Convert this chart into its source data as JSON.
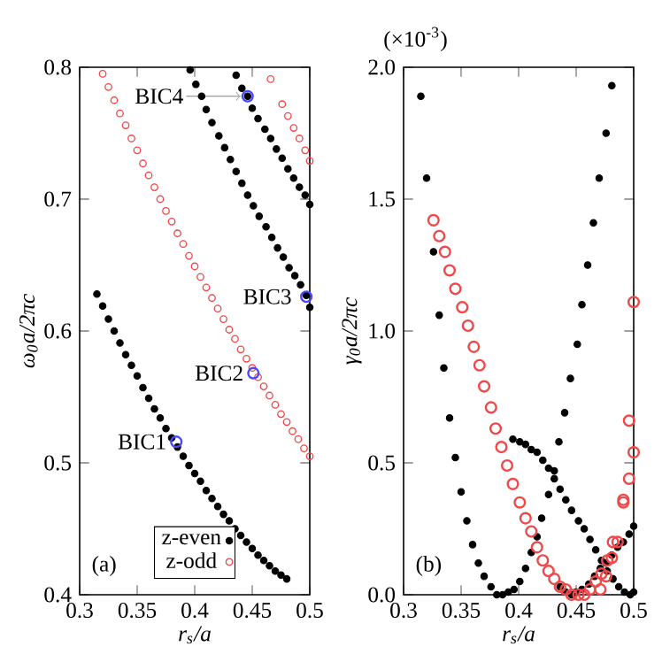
{
  "chart_data": [
    {
      "type": "scatter",
      "xlabel": "r$_{s}$/a",
      "ylabel": "ω$_{0}$a/2πc",
      "xlim": [
        0.3,
        0.5
      ],
      "ylim": [
        0.4,
        0.8
      ],
      "xticks": [
        0.3,
        0.35,
        0.4,
        0.45,
        0.5
      ],
      "yticks": [
        0.4,
        0.5,
        0.6,
        0.7,
        0.8
      ],
      "marker": "circle",
      "legend": "bottom",
      "annotations": [
        "(a)",
        {
          "text": "BIC1",
          "x": 0.384,
          "y": 0.516
        },
        {
          "text": "BIC2",
          "x": 0.451,
          "y": 0.568
        },
        {
          "text": "BIC3",
          "x": 0.497,
          "y": 0.626
        },
        {
          "text": "BIC4",
          "x": 0.446,
          "y": 0.778
        }
      ],
      "series": [
        {
          "name": "z-even",
          "color": "#000000",
          "x": [
            0.315,
            0.32,
            0.325,
            0.33,
            0.335,
            0.34,
            0.345,
            0.35,
            0.355,
            0.36,
            0.365,
            0.37,
            0.375,
            0.38,
            0.385,
            0.39,
            0.395,
            0.4,
            0.405,
            0.41,
            0.415,
            0.42,
            0.425,
            0.43,
            0.435,
            0.44,
            0.445,
            0.45,
            0.455,
            0.46,
            0.465,
            0.47,
            0.475,
            0.48,
            0.396,
            0.401,
            0.406,
            0.41,
            0.415,
            0.421,
            0.426,
            0.431,
            0.436,
            0.441,
            0.446,
            0.451,
            0.456,
            0.462,
            0.467,
            0.472,
            0.477,
            0.482,
            0.487,
            0.492,
            0.497,
            0.5,
            0.436,
            0.441,
            0.446,
            0.45,
            0.455,
            0.461,
            0.466,
            0.471,
            0.476,
            0.481,
            0.486,
            0.491,
            0.496,
            0.5
          ],
          "values": [
            0.628,
            0.619,
            0.609,
            0.6,
            0.591,
            0.582,
            0.574,
            0.566,
            0.557,
            0.549,
            0.541,
            0.534,
            0.526,
            0.519,
            0.512,
            0.505,
            0.498,
            0.492,
            0.486,
            0.479,
            0.473,
            0.467,
            0.461,
            0.456,
            0.45,
            0.445,
            0.44,
            0.435,
            0.43,
            0.426,
            0.422,
            0.418,
            0.415,
            0.412,
            0.798,
            0.787,
            0.778,
            0.768,
            0.758,
            0.748,
            0.739,
            0.73,
            0.721,
            0.712,
            0.703,
            0.695,
            0.687,
            0.679,
            0.671,
            0.663,
            0.656,
            0.648,
            0.642,
            0.635,
            0.627,
            0.618,
            0.794,
            0.784,
            0.778,
            0.769,
            0.761,
            0.753,
            0.746,
            0.738,
            0.731,
            0.723,
            0.716,
            0.709,
            0.703,
            0.696
          ]
        },
        {
          "name": "z-odd",
          "color": "#f04848",
          "x": [
            0.32,
            0.325,
            0.33,
            0.335,
            0.34,
            0.345,
            0.35,
            0.355,
            0.36,
            0.365,
            0.37,
            0.375,
            0.38,
            0.385,
            0.39,
            0.395,
            0.4,
            0.405,
            0.41,
            0.415,
            0.42,
            0.425,
            0.43,
            0.435,
            0.44,
            0.445,
            0.45,
            0.455,
            0.46,
            0.465,
            0.47,
            0.475,
            0.48,
            0.485,
            0.49,
            0.495,
            0.5,
            0.466,
            0.476,
            0.481,
            0.486,
            0.491,
            0.496,
            0.5
          ],
          "values": [
            0.795,
            0.785,
            0.775,
            0.765,
            0.756,
            0.746,
            0.737,
            0.727,
            0.718,
            0.709,
            0.7,
            0.691,
            0.683,
            0.674,
            0.666,
            0.657,
            0.649,
            0.641,
            0.633,
            0.625,
            0.617,
            0.609,
            0.601,
            0.594,
            0.586,
            0.579,
            0.572,
            0.565,
            0.558,
            0.551,
            0.544,
            0.537,
            0.531,
            0.524,
            0.518,
            0.511,
            0.505,
            0.791,
            0.772,
            0.763,
            0.754,
            0.746,
            0.737,
            0.729
          ]
        },
        {
          "color": "#4848ff",
          "x": [
            0.384,
            0.451,
            0.497,
            0.446
          ],
          "values": [
            0.516,
            0.568,
            0.626,
            0.778
          ]
        }
      ]
    },
    {
      "type": "scatter",
      "xlabel": "r$_{s}$/a",
      "ylabel": "γ$_{0}$a/2πc",
      "xlim": [
        0.3,
        0.5
      ],
      "ylim": [
        0,
        2.0
      ],
      "xticks": [
        0.3,
        0.35,
        0.4,
        0.45,
        0.5
      ],
      "yticks": [
        {
          "value": 0,
          "label": "0.0"
        },
        {
          "value": 0.5,
          "label": "0.5"
        },
        {
          "value": 1.0,
          "label": "1.0"
        },
        {
          "value": 1.5,
          "label": "1.5"
        },
        {
          "value": 2.0,
          "label": "2.0"
        }
      ],
      "marker": "circle",
      "annotations": [
        "(b)",
        "(×10$^{-3}$)"
      ],
      "series": [
        {
          "color": "#000000",
          "x": [
            0.315,
            0.32,
            0.326,
            0.331,
            0.335,
            0.34,
            0.345,
            0.35,
            0.355,
            0.36,
            0.365,
            0.37,
            0.376,
            0.381,
            0.386,
            0.391,
            0.396,
            0.401,
            0.406,
            0.411,
            0.416,
            0.42,
            0.426,
            0.431,
            0.435,
            0.44,
            0.445,
            0.451,
            0.455,
            0.46,
            0.465,
            0.47,
            0.476,
            0.481,
            0.395,
            0.401,
            0.406,
            0.411,
            0.416,
            0.421,
            0.426,
            0.431,
            0.436,
            0.441,
            0.446,
            0.452,
            0.457,
            0.462,
            0.467,
            0.472,
            0.477,
            0.482,
            0.487,
            0.492,
            0.497,
            0.5,
            0.436,
            0.441,
            0.446,
            0.45,
            0.455,
            0.461,
            0.466,
            0.471,
            0.476,
            0.481,
            0.486,
            0.491,
            0.496,
            0.5
          ],
          "values": [
            1.89,
            1.58,
            1.3,
            1.06,
            0.86,
            0.67,
            0.52,
            0.39,
            0.28,
            0.19,
            0.12,
            0.07,
            0.03,
            0.0,
            0.0,
            0.01,
            0.02,
            0.05,
            0.1,
            0.16,
            0.22,
            0.29,
            0.38,
            0.47,
            0.58,
            0.69,
            0.82,
            0.95,
            1.1,
            1.25,
            1.41,
            1.58,
            1.75,
            1.93,
            0.59,
            0.58,
            0.57,
            0.55,
            0.54,
            0.51,
            0.48,
            0.44,
            0.4,
            0.36,
            0.32,
            0.28,
            0.25,
            0.21,
            0.17,
            0.13,
            0.09,
            0.06,
            0.03,
            0.01,
            0.0,
            0.01,
            0.03,
            0.01,
            0.0,
            0.01,
            0.02,
            0.04,
            0.07,
            0.1,
            0.12,
            0.15,
            0.18,
            0.2,
            0.23,
            0.26
          ]
        },
        {
          "color": "#f04848",
          "x": [
            0.326,
            0.331,
            0.336,
            0.34,
            0.345,
            0.351,
            0.356,
            0.361,
            0.366,
            0.37,
            0.376,
            0.38,
            0.385,
            0.39,
            0.395,
            0.401,
            0.406,
            0.411,
            0.416,
            0.421,
            0.426,
            0.431,
            0.436,
            0.441,
            0.446,
            0.452,
            0.457,
            0.462,
            0.467,
            0.472,
            0.477,
            0.482,
            0.491,
            0.496,
            0.5,
            0.471,
            0.476,
            0.481,
            0.486,
            0.491,
            0.496,
            0.5
          ],
          "values": [
            1.42,
            1.36,
            1.3,
            1.23,
            1.16,
            1.09,
            1.02,
            0.94,
            0.87,
            0.79,
            0.71,
            0.63,
            0.56,
            0.49,
            0.42,
            0.35,
            0.29,
            0.24,
            0.18,
            0.13,
            0.09,
            0.06,
            0.03,
            0.02,
            0.0,
            0.0,
            0.0,
            0.02,
            0.05,
            0.08,
            0.13,
            0.2,
            0.35,
            0.44,
            0.54,
            0.02,
            0.07,
            0.14,
            0.2,
            0.36,
            0.66,
            1.11
          ]
        }
      ]
    }
  ]
}
